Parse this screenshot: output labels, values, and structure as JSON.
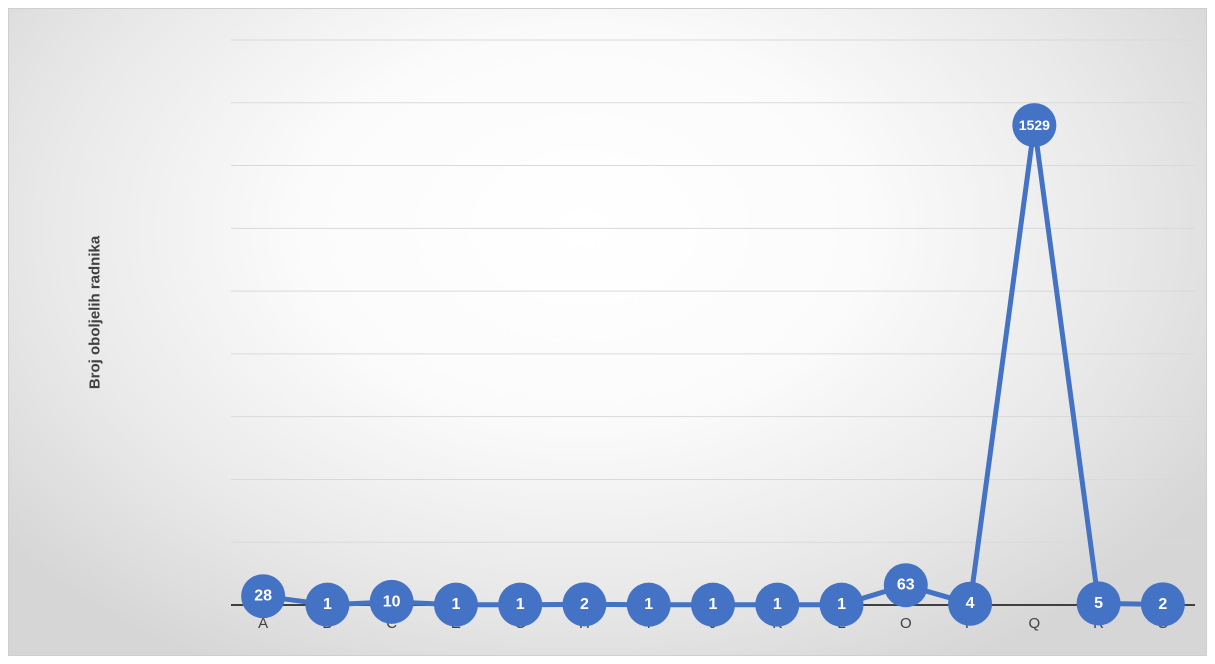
{
  "chart_data": {
    "type": "line",
    "title": "",
    "xlabel": "",
    "ylabel": "Broj oboljelih radnika",
    "categories": [
      "A",
      "B",
      "C",
      "E",
      "G",
      "H",
      "I",
      "J",
      "K",
      "L",
      "O",
      "P",
      "Q",
      "R",
      "S"
    ],
    "series": [
      {
        "values": [
          28,
          1,
          10,
          1,
          1,
          2,
          1,
          1,
          1,
          1,
          63,
          4,
          1529,
          5,
          2
        ]
      }
    ],
    "data_labels": [
      "28",
      "1",
      "10",
      "1",
      "1",
      "2",
      "1",
      "1",
      "1",
      "1",
      "63",
      "4",
      "1529",
      "5",
      "2"
    ],
    "ylim": [
      0,
      1800
    ],
    "grid": true,
    "legend": "none",
    "colors": {
      "series": "#4472C4",
      "grid": "#d9d9d9",
      "axis": "#404040",
      "label_text": "#ffffff"
    }
  }
}
